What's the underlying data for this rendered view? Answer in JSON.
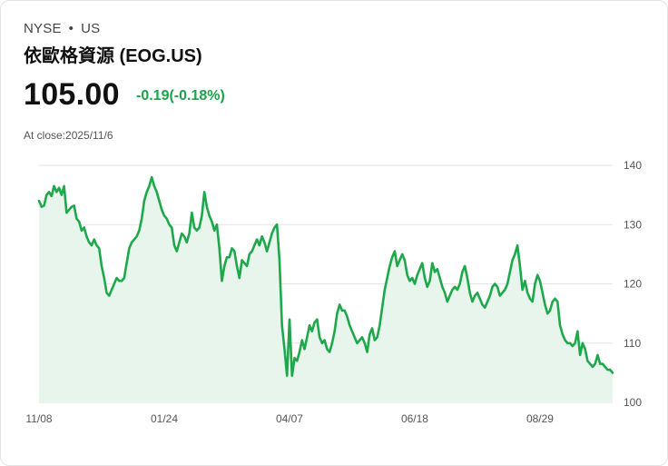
{
  "header": {
    "exchange": "NYSE",
    "separator": "•",
    "market": "US",
    "title": "依歐格資源 (EOG.US)",
    "price": "105.00",
    "change": "-0.19(-0.18%)",
    "close_label": "At close:2025/11/6"
  },
  "colors": {
    "line": "#1ea84b",
    "area": "#e7f5ec",
    "grid": "#e3e3e3",
    "change": "#1aa34a"
  },
  "chart_data": {
    "type": "area",
    "x_tick_labels": [
      "11/08",
      "01/24",
      "04/07",
      "06/18",
      "08/29"
    ],
    "x_tick_index": [
      0,
      50,
      100,
      150,
      200
    ],
    "y_ticks": [
      100,
      110,
      120,
      130,
      140
    ],
    "ylim": [
      100,
      140
    ],
    "y_axis_position": "right",
    "grid": true,
    "values": [
      134.0,
      133.0,
      133.2,
      135.0,
      135.5,
      134.8,
      136.5,
      135.5,
      136.2,
      135.0,
      136.5,
      132.0,
      132.5,
      133.0,
      133.2,
      131.0,
      130.5,
      129.0,
      129.5,
      128.0,
      127.0,
      126.5,
      127.5,
      126.5,
      126.0,
      123.0,
      121.0,
      118.5,
      118.0,
      119.0,
      120.0,
      121.0,
      120.5,
      120.5,
      121.0,
      123.5,
      126.0,
      127.0,
      127.5,
      128.0,
      129.0,
      131.0,
      134.0,
      135.5,
      136.5,
      138.0,
      136.5,
      135.5,
      134.0,
      132.5,
      131.5,
      131.0,
      130.0,
      129.5,
      126.5,
      125.5,
      127.0,
      128.5,
      128.0,
      127.0,
      128.5,
      132.0,
      129.5,
      129.0,
      129.5,
      131.5,
      135.5,
      133.0,
      131.5,
      130.5,
      129.0,
      130.0,
      126.0,
      120.5,
      123.0,
      124.5,
      124.5,
      126.0,
      125.5,
      123.0,
      121.0,
      124.0,
      123.5,
      123.0,
      125.0,
      125.5,
      126.5,
      127.5,
      126.5,
      128.0,
      127.0,
      125.5,
      127.0,
      128.5,
      129.5,
      130.0,
      124.0,
      113.0,
      109.0,
      104.5,
      114.0,
      104.5,
      107.5,
      107.0,
      108.5,
      110.5,
      109.0,
      111.0,
      113.0,
      112.0,
      113.5,
      114.0,
      111.0,
      110.0,
      110.5,
      109.0,
      108.5,
      110.0,
      112.0,
      115.0,
      116.5,
      115.5,
      115.5,
      114.5,
      113.0,
      112.0,
      111.0,
      110.0,
      110.5,
      111.0,
      110.0,
      108.5,
      111.5,
      112.5,
      110.5,
      111.0,
      113.0,
      116.0,
      119.0,
      121.0,
      123.0,
      124.5,
      125.5,
      123.0,
      124.0,
      125.0,
      124.0,
      121.5,
      120.5,
      121.0,
      120.0,
      121.5,
      122.5,
      123.5,
      121.0,
      119.5,
      120.5,
      123.5,
      122.0,
      122.5,
      121.0,
      119.5,
      118.5,
      117.0,
      118.0,
      119.0,
      119.5,
      119.0,
      120.0,
      122.0,
      123.0,
      121.0,
      118.5,
      117.0,
      118.0,
      118.5,
      117.5,
      116.5,
      116.0,
      117.0,
      118.0,
      119.5,
      120.0,
      119.5,
      118.0,
      118.5,
      119.0,
      120.0,
      122.0,
      124.0,
      125.0,
      126.5,
      123.0,
      119.0,
      120.5,
      118.5,
      117.5,
      117.0,
      120.0,
      121.5,
      120.5,
      118.5,
      116.5,
      115.0,
      115.5,
      117.0,
      117.5,
      117.0,
      113.0,
      111.5,
      110.5,
      110.0,
      110.0,
      109.5,
      110.0,
      112.0,
      108.0,
      110.0,
      109.0,
      107.0,
      106.5,
      106.0,
      106.5,
      108.0,
      106.5,
      106.5,
      106.0,
      105.5,
      105.5,
      105.0
    ]
  }
}
